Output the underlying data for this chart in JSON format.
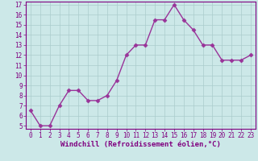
{
  "x": [
    0,
    1,
    2,
    3,
    4,
    5,
    6,
    7,
    8,
    9,
    10,
    11,
    12,
    13,
    14,
    15,
    16,
    17,
    18,
    19,
    20,
    21,
    22,
    23
  ],
  "y": [
    6.5,
    5.0,
    5.0,
    7.0,
    8.5,
    8.5,
    7.5,
    7.5,
    8.0,
    9.5,
    12.0,
    13.0,
    13.0,
    15.5,
    15.5,
    17.0,
    15.5,
    14.5,
    13.0,
    13.0,
    11.5,
    11.5,
    11.5,
    12.0
  ],
  "line_color": "#993399",
  "marker": "D",
  "marker_size": 2.5,
  "xlim_min": -0.5,
  "xlim_max": 23.5,
  "ylim_min": 4.7,
  "ylim_max": 17.3,
  "yticks": [
    5,
    6,
    7,
    8,
    9,
    10,
    11,
    12,
    13,
    14,
    15,
    16,
    17
  ],
  "xticks": [
    0,
    1,
    2,
    3,
    4,
    5,
    6,
    7,
    8,
    9,
    10,
    11,
    12,
    13,
    14,
    15,
    16,
    17,
    18,
    19,
    20,
    21,
    22,
    23
  ],
  "xlabel": "Windchill (Refroidissement éolien,°C)",
  "background_color": "#cce8e8",
  "grid_color": "#aacccc",
  "font_color": "#800080",
  "tick_labelsize": 5.5,
  "xlabel_fontsize": 6.5,
  "linewidth": 1.0
}
